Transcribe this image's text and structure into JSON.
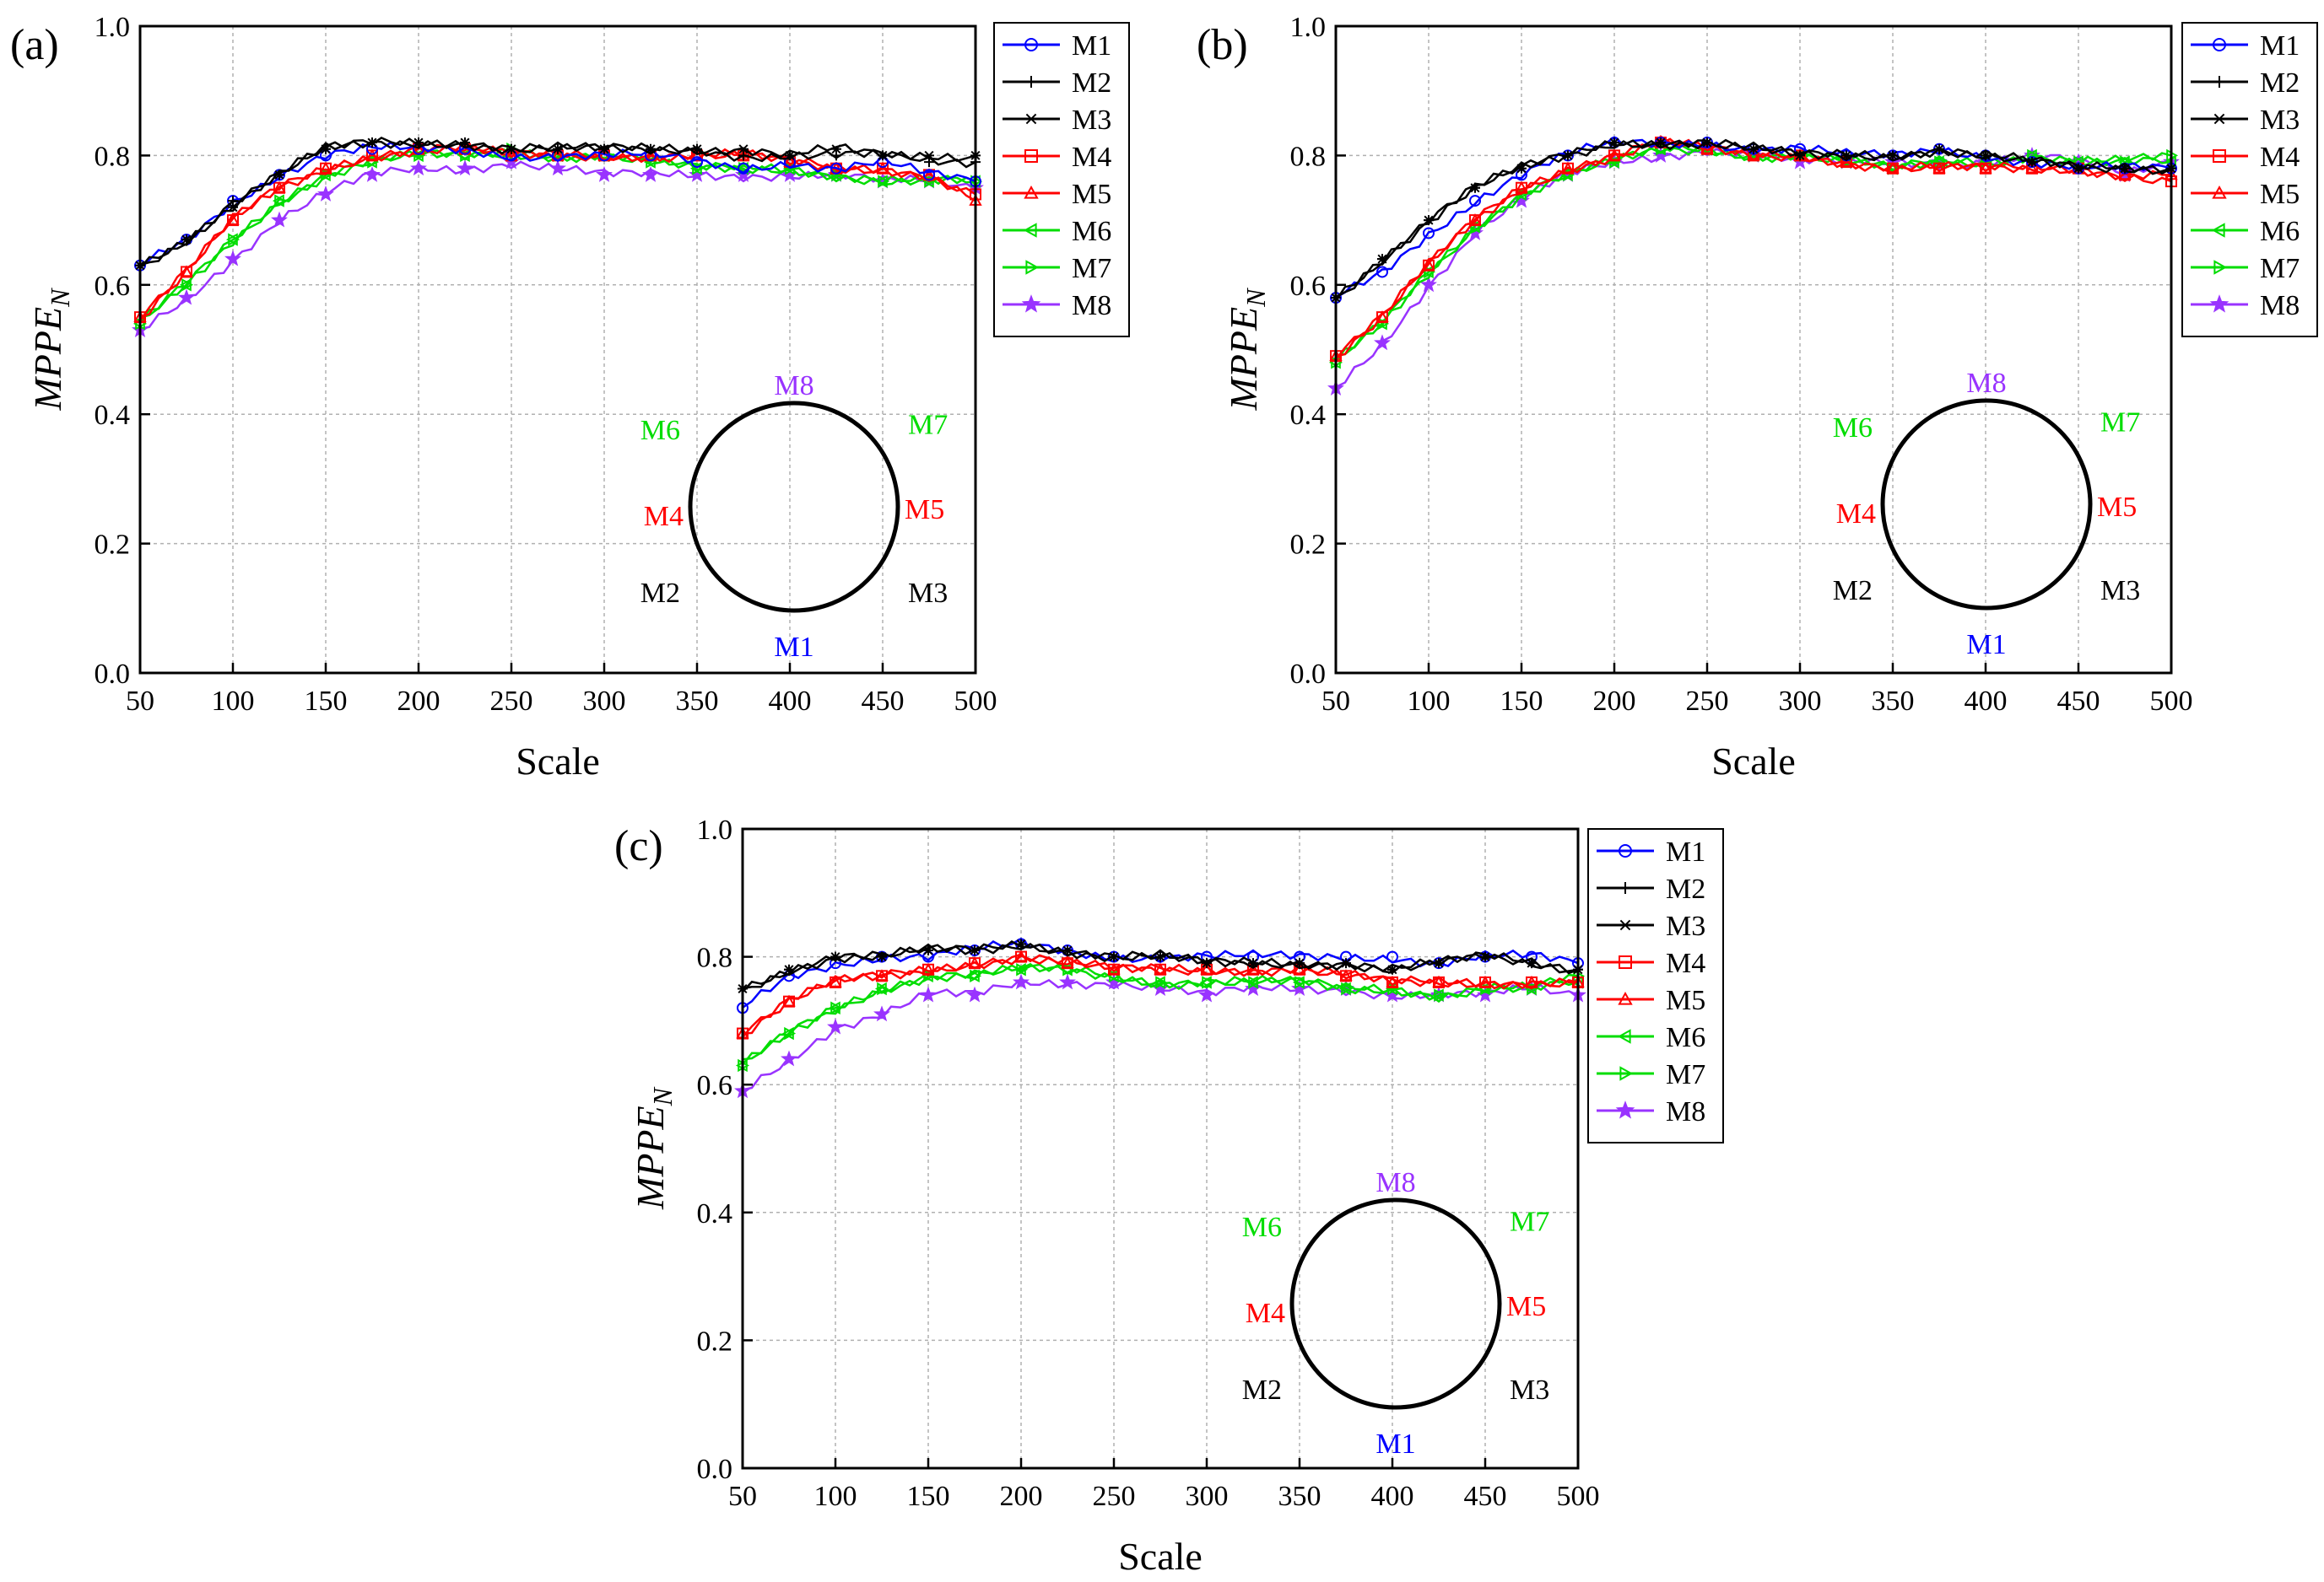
{
  "figure": {
    "y_axis_label_main": "MPPE",
    "y_axis_label_sub": "N",
    "x_axis_label": "Scale",
    "inset_labels": [
      "M8",
      "M6",
      "M7",
      "M4",
      "M5",
      "M2",
      "M3",
      "M1"
    ]
  },
  "series_colors": {
    "M1": "#0000ff",
    "M2": "#000000",
    "M3": "#000000",
    "M4": "#ff0000",
    "M5": "#ff0000",
    "M6": "#00dd00",
    "M7": "#00dd00",
    "M8": "#9933ff"
  },
  "series_markers": {
    "M1": "circle-icon",
    "M2": "plus-icon",
    "M3": "asterisk-icon",
    "M4": "square-icon",
    "M5": "triangle-up-icon",
    "M6": "triangle-left-icon",
    "M7": "triangle-right-icon",
    "M8": "star-icon"
  },
  "chart_data": [
    {
      "type": "line",
      "panel_label": "(a)",
      "xlabel": "Scale",
      "ylabel": "MPPE_N",
      "xlim": [
        50,
        500
      ],
      "ylim": [
        0.0,
        1.0
      ],
      "xticks": [
        "50",
        "100",
        "150",
        "200",
        "250",
        "300",
        "350",
        "400",
        "450",
        "500"
      ],
      "yticks": [
        "0.0",
        "0.2",
        "0.4",
        "0.6",
        "0.8",
        "1.0"
      ],
      "grid": true,
      "legend_position": "outside-right-top",
      "x": [
        50,
        75,
        100,
        125,
        150,
        175,
        200,
        225,
        250,
        275,
        300,
        325,
        350,
        375,
        400,
        425,
        450,
        475,
        500
      ],
      "series": [
        {
          "name": "M1",
          "values": [
            0.63,
            0.67,
            0.73,
            0.77,
            0.8,
            0.81,
            0.81,
            0.81,
            0.8,
            0.8,
            0.8,
            0.8,
            0.79,
            0.78,
            0.79,
            0.78,
            0.79,
            0.77,
            0.76
          ]
        },
        {
          "name": "M2",
          "values": [
            0.63,
            0.67,
            0.73,
            0.77,
            0.81,
            0.82,
            0.82,
            0.82,
            0.81,
            0.81,
            0.81,
            0.81,
            0.81,
            0.8,
            0.8,
            0.8,
            0.8,
            0.79,
            0.79
          ]
        },
        {
          "name": "M3",
          "values": [
            0.63,
            0.67,
            0.72,
            0.77,
            0.81,
            0.82,
            0.82,
            0.82,
            0.81,
            0.81,
            0.81,
            0.81,
            0.81,
            0.81,
            0.8,
            0.81,
            0.8,
            0.8,
            0.8
          ]
        },
        {
          "name": "M4",
          "values": [
            0.55,
            0.62,
            0.7,
            0.75,
            0.78,
            0.8,
            0.81,
            0.81,
            0.8,
            0.8,
            0.8,
            0.8,
            0.8,
            0.8,
            0.79,
            0.78,
            0.78,
            0.77,
            0.74
          ]
        },
        {
          "name": "M5",
          "values": [
            0.55,
            0.62,
            0.7,
            0.75,
            0.78,
            0.8,
            0.81,
            0.81,
            0.8,
            0.8,
            0.8,
            0.8,
            0.8,
            0.8,
            0.79,
            0.78,
            0.78,
            0.77,
            0.73
          ]
        },
        {
          "name": "M6",
          "values": [
            0.54,
            0.6,
            0.67,
            0.73,
            0.77,
            0.79,
            0.8,
            0.8,
            0.8,
            0.8,
            0.8,
            0.79,
            0.78,
            0.78,
            0.78,
            0.77,
            0.76,
            0.76,
            0.76
          ]
        },
        {
          "name": "M7",
          "values": [
            0.54,
            0.6,
            0.67,
            0.73,
            0.77,
            0.79,
            0.8,
            0.8,
            0.81,
            0.8,
            0.8,
            0.79,
            0.78,
            0.78,
            0.78,
            0.77,
            0.76,
            0.76,
            0.76
          ]
        },
        {
          "name": "M8",
          "values": [
            0.53,
            0.58,
            0.64,
            0.7,
            0.74,
            0.77,
            0.78,
            0.78,
            0.79,
            0.78,
            0.77,
            0.77,
            0.77,
            0.77,
            0.77,
            0.77,
            0.76,
            0.76,
            0.75
          ]
        }
      ]
    },
    {
      "type": "line",
      "panel_label": "(b)",
      "xlabel": "Scale",
      "ylabel": "MPPE_N",
      "xlim": [
        50,
        500
      ],
      "ylim": [
        0.0,
        1.0
      ],
      "xticks": [
        "50",
        "100",
        "150",
        "200",
        "250",
        "300",
        "350",
        "400",
        "450",
        "500"
      ],
      "yticks": [
        "0.0",
        "0.2",
        "0.4",
        "0.6",
        "0.8",
        "1.0"
      ],
      "grid": true,
      "legend_position": "outside-right-top",
      "x": [
        50,
        75,
        100,
        125,
        150,
        175,
        200,
        225,
        250,
        275,
        300,
        325,
        350,
        375,
        400,
        425,
        450,
        475,
        500
      ],
      "series": [
        {
          "name": "M1",
          "values": [
            0.58,
            0.62,
            0.68,
            0.73,
            0.77,
            0.8,
            0.82,
            0.82,
            0.82,
            0.81,
            0.81,
            0.8,
            0.8,
            0.81,
            0.8,
            0.79,
            0.78,
            0.78,
            0.78
          ]
        },
        {
          "name": "M2",
          "values": [
            0.58,
            0.64,
            0.7,
            0.75,
            0.78,
            0.8,
            0.82,
            0.82,
            0.82,
            0.81,
            0.8,
            0.8,
            0.8,
            0.81,
            0.8,
            0.79,
            0.78,
            0.78,
            0.78
          ]
        },
        {
          "name": "M3",
          "values": [
            0.58,
            0.64,
            0.7,
            0.75,
            0.78,
            0.8,
            0.82,
            0.82,
            0.82,
            0.81,
            0.8,
            0.8,
            0.8,
            0.81,
            0.8,
            0.79,
            0.78,
            0.78,
            0.78
          ]
        },
        {
          "name": "M4",
          "values": [
            0.49,
            0.55,
            0.63,
            0.7,
            0.75,
            0.78,
            0.8,
            0.82,
            0.81,
            0.8,
            0.8,
            0.79,
            0.78,
            0.78,
            0.78,
            0.78,
            0.78,
            0.77,
            0.76
          ]
        },
        {
          "name": "M5",
          "values": [
            0.49,
            0.55,
            0.63,
            0.7,
            0.75,
            0.78,
            0.8,
            0.82,
            0.81,
            0.8,
            0.8,
            0.79,
            0.78,
            0.78,
            0.78,
            0.78,
            0.78,
            0.77,
            0.77
          ]
        },
        {
          "name": "M6",
          "values": [
            0.48,
            0.54,
            0.62,
            0.69,
            0.74,
            0.77,
            0.79,
            0.81,
            0.81,
            0.8,
            0.8,
            0.79,
            0.78,
            0.79,
            0.79,
            0.8,
            0.79,
            0.79,
            0.79
          ]
        },
        {
          "name": "M7",
          "values": [
            0.48,
            0.54,
            0.62,
            0.69,
            0.74,
            0.77,
            0.79,
            0.81,
            0.81,
            0.8,
            0.8,
            0.79,
            0.78,
            0.79,
            0.79,
            0.8,
            0.79,
            0.79,
            0.8
          ]
        },
        {
          "name": "M8",
          "values": [
            0.44,
            0.51,
            0.6,
            0.68,
            0.73,
            0.77,
            0.79,
            0.8,
            0.81,
            0.8,
            0.79,
            0.79,
            0.79,
            0.79,
            0.79,
            0.8,
            0.79,
            0.77,
            0.79
          ]
        }
      ]
    },
    {
      "type": "line",
      "panel_label": "(c)",
      "xlabel": "Scale",
      "ylabel": "MPPE_N",
      "xlim": [
        50,
        500
      ],
      "ylim": [
        0.0,
        1.0
      ],
      "xticks": [
        "50",
        "100",
        "150",
        "200",
        "250",
        "300",
        "350",
        "400",
        "450",
        "500"
      ],
      "yticks": [
        "0.0",
        "0.2",
        "0.4",
        "0.6",
        "0.8",
        "1.0"
      ],
      "grid": true,
      "legend_position": "outside-right-top",
      "x": [
        50,
        75,
        100,
        125,
        150,
        175,
        200,
        225,
        250,
        275,
        300,
        325,
        350,
        375,
        400,
        425,
        450,
        475,
        500
      ],
      "series": [
        {
          "name": "M1",
          "values": [
            0.72,
            0.77,
            0.79,
            0.8,
            0.8,
            0.81,
            0.82,
            0.81,
            0.8,
            0.8,
            0.8,
            0.8,
            0.8,
            0.8,
            0.8,
            0.79,
            0.8,
            0.8,
            0.79
          ]
        },
        {
          "name": "M2",
          "values": [
            0.75,
            0.78,
            0.8,
            0.8,
            0.81,
            0.81,
            0.82,
            0.81,
            0.8,
            0.8,
            0.79,
            0.79,
            0.79,
            0.79,
            0.78,
            0.79,
            0.8,
            0.79,
            0.78
          ]
        },
        {
          "name": "M3",
          "values": [
            0.75,
            0.78,
            0.8,
            0.8,
            0.81,
            0.81,
            0.82,
            0.81,
            0.8,
            0.8,
            0.79,
            0.79,
            0.79,
            0.79,
            0.78,
            0.79,
            0.8,
            0.79,
            0.78
          ]
        },
        {
          "name": "M4",
          "values": [
            0.68,
            0.73,
            0.76,
            0.77,
            0.78,
            0.79,
            0.8,
            0.79,
            0.78,
            0.78,
            0.78,
            0.78,
            0.78,
            0.77,
            0.76,
            0.76,
            0.76,
            0.76,
            0.76
          ]
        },
        {
          "name": "M5",
          "values": [
            0.68,
            0.73,
            0.76,
            0.77,
            0.78,
            0.79,
            0.8,
            0.79,
            0.78,
            0.78,
            0.78,
            0.78,
            0.78,
            0.77,
            0.76,
            0.76,
            0.76,
            0.76,
            0.76
          ]
        },
        {
          "name": "M6",
          "values": [
            0.63,
            0.68,
            0.72,
            0.75,
            0.77,
            0.77,
            0.78,
            0.78,
            0.77,
            0.76,
            0.76,
            0.76,
            0.76,
            0.75,
            0.75,
            0.74,
            0.75,
            0.75,
            0.76
          ]
        },
        {
          "name": "M7",
          "values": [
            0.63,
            0.68,
            0.72,
            0.75,
            0.77,
            0.77,
            0.78,
            0.78,
            0.77,
            0.76,
            0.76,
            0.76,
            0.76,
            0.75,
            0.75,
            0.74,
            0.75,
            0.75,
            0.77
          ]
        },
        {
          "name": "M8",
          "values": [
            0.59,
            0.64,
            0.69,
            0.71,
            0.74,
            0.74,
            0.76,
            0.76,
            0.76,
            0.75,
            0.74,
            0.75,
            0.75,
            0.75,
            0.74,
            0.74,
            0.74,
            0.75,
            0.74
          ]
        }
      ]
    }
  ]
}
